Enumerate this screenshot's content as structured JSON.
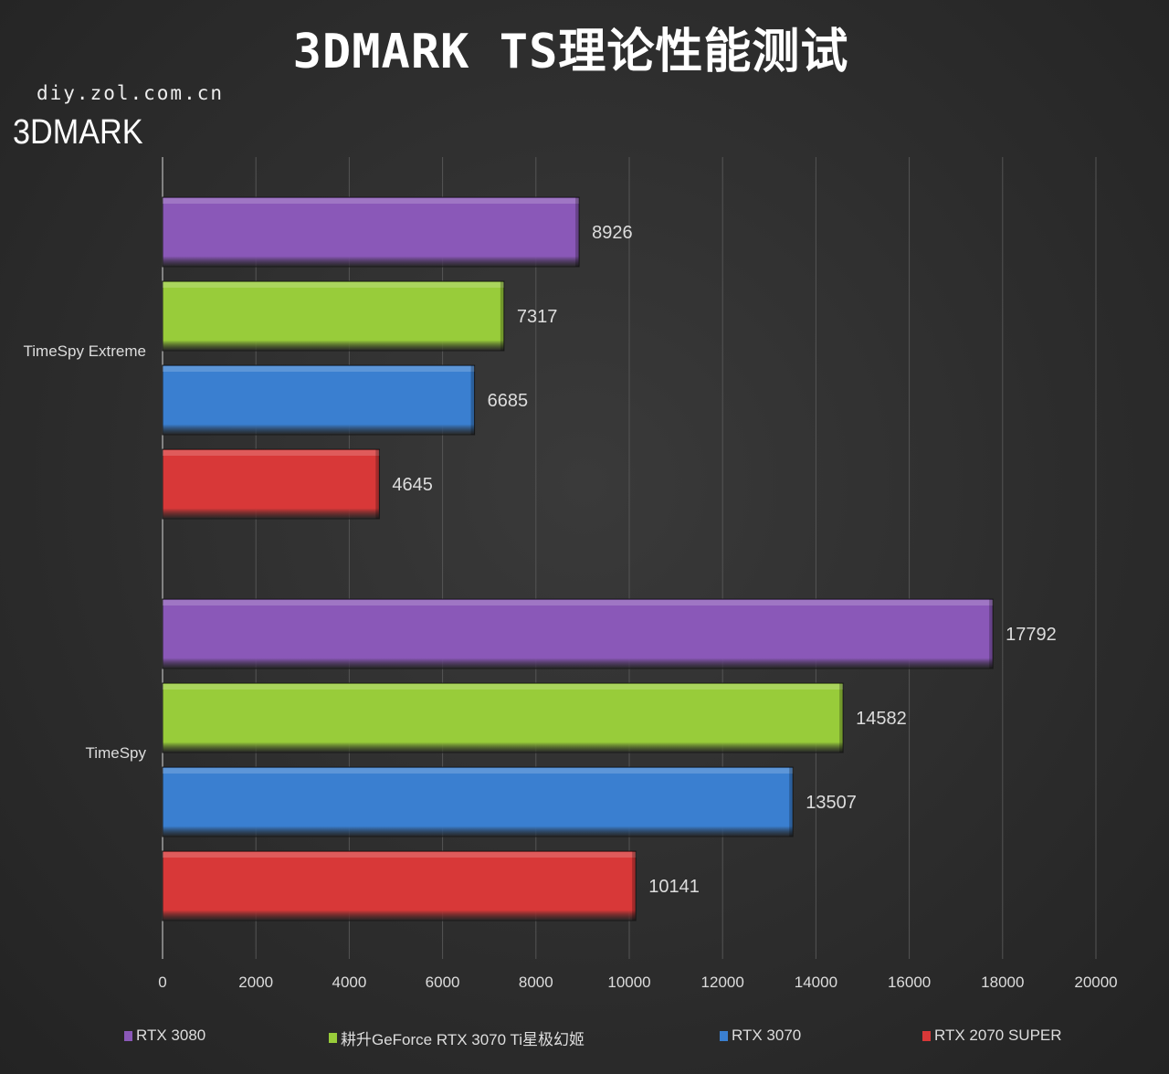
{
  "title": "3DMARK TS理论性能测试",
  "watermark": "diy.zol.com.cn",
  "logo_text": "3DMARK",
  "chart_data": {
    "type": "bar",
    "orientation": "horizontal",
    "categories": [
      "TimeSpy Extreme",
      "TimeSpy"
    ],
    "series": [
      {
        "name": "RTX 3080",
        "color": "#8a58b8",
        "values": [
          8926,
          17792
        ]
      },
      {
        "name": "耕升GeForce RTX 3070 Ti星极幻姬",
        "color": "#98cc3a",
        "values": [
          7317,
          14582
        ]
      },
      {
        "name": "RTX 3070",
        "color": "#3a7fd0",
        "values": [
          6685,
          13507
        ]
      },
      {
        "name": "RTX 2070 SUPER",
        "color": "#d83838",
        "values": [
          4645,
          10141
        ]
      }
    ],
    "xlim": [
      0,
      20000
    ],
    "xticks": [
      "0",
      "2000",
      "4000",
      "6000",
      "8000",
      "10000",
      "12000",
      "14000",
      "16000",
      "18000",
      "20000"
    ],
    "grid": true,
    "legend": "bottom"
  }
}
